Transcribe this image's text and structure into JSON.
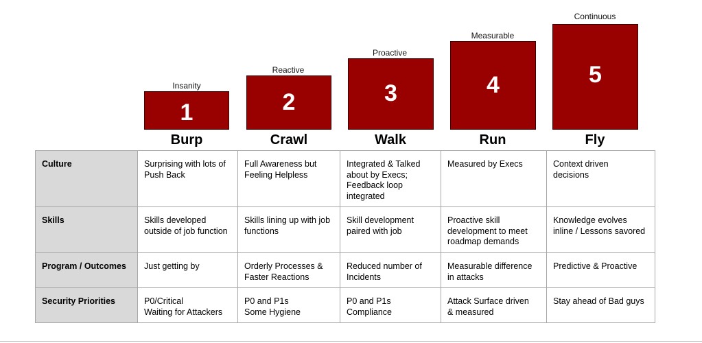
{
  "levels": [
    {
      "caption": "Insanity",
      "number": "1",
      "name": "Burp"
    },
    {
      "caption": "Reactive",
      "number": "2",
      "name": "Crawl"
    },
    {
      "caption": "Proactive",
      "number": "3",
      "name": "Walk"
    },
    {
      "caption": "Measurable",
      "number": "4",
      "name": "Run"
    },
    {
      "caption": "Continuous",
      "number": "5",
      "name": "Fly"
    }
  ],
  "colors": {
    "box": "#990000",
    "header_cell": "#d9d9d9"
  },
  "rows": [
    {
      "label": "Culture",
      "cells": [
        [
          "Surprising with lots of",
          "Push Back"
        ],
        [
          "Full Awareness but",
          "Feeling Helpless"
        ],
        [
          "Integrated & Talked",
          "about by Execs;",
          "Feedback loop",
          "integrated"
        ],
        [
          "Measured by Execs"
        ],
        [
          "Context driven",
          "decisions"
        ]
      ]
    },
    {
      "label": "Skills",
      "cells": [
        [
          "Skills developed",
          "outside of job function"
        ],
        [
          "Skills lining up with job",
          "functions"
        ],
        [
          "Skill development",
          "paired with job"
        ],
        [
          "Proactive skill",
          "development to meet",
          "roadmap demands"
        ],
        [
          "Knowledge evolves",
          "inline / Lessons savored"
        ]
      ]
    },
    {
      "label": "Program / Outcomes",
      "cells": [
        [
          "Just getting by"
        ],
        [
          "Orderly Processes &",
          "Faster Reactions"
        ],
        [
          "Reduced number of",
          "Incidents"
        ],
        [
          "Measurable difference",
          "in attacks"
        ],
        [
          "Predictive & Proactive"
        ]
      ]
    },
    {
      "label": "Security Priorities",
      "cells": [
        [
          "P0/Critical",
          "Waiting for Attackers"
        ],
        [
          "P0 and P1s",
          "Some Hygiene"
        ],
        [
          "P0 and P1s",
          "Compliance"
        ],
        [
          "Attack Surface driven",
          "& measured"
        ],
        [
          "Stay ahead of Bad guys"
        ]
      ]
    }
  ]
}
